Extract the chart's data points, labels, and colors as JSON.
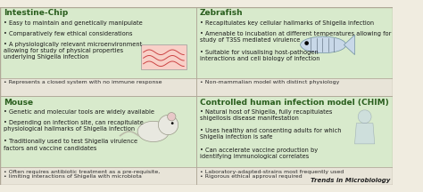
{
  "bg_color": "#f0ece0",
  "green_bg": "#d8eacc",
  "footer_bg": "#e8e4d8",
  "white_header_bg": "#f5f2ea",
  "border_color": "#b0a898",
  "header_green": "#2a5e1e",
  "bullet_color": "#1a1a1a",
  "footer_color": "#2a2a2a",
  "title_color": "#222222",
  "title": "Trends in Microbiology",
  "font_size_label": 6.5,
  "font_size_bullet": 4.8,
  "font_size_footer": 4.5,
  "font_size_title": 5.0,
  "quadrants": [
    {
      "label": "Intestine-Chip",
      "col": 0,
      "row": 0,
      "bullets": [
        "Easy to maintain and genetically manipulate",
        "Comparatively few ethical considerations",
        "A physiologically relevant microenvironment\nallowing for study of physical properties\nunderlying Shigella infection"
      ],
      "footer": "Represents a closed system with no immune response"
    },
    {
      "label": "Zebrafish",
      "col": 1,
      "row": 0,
      "bullets": [
        "Recapitulates key cellular hallmarks of Shigella infection",
        "Amenable to incubation at different temperatures allowing for\nstudy of T3SS mediated virulence",
        "Suitable for visualising host-pathogen\ninteractions and cell biology of infection"
      ],
      "footer": "Non-mammalian model with distinct physiology"
    },
    {
      "label": "Mouse",
      "col": 0,
      "row": 1,
      "bullets": [
        "Genetic and molecular tools are widely available",
        "Depending on infection site, can recapitulate\nphysiological hallmarks of Shigella infection",
        "Traditionally used to test Shigella virulence\nfactors and vaccine candidates"
      ],
      "footer": "Often requires antibiotic treatment as a pre-requisite,\nlimiting interactions of Shigella with microbiota"
    },
    {
      "label": "Controlled human infection model (CHIM)",
      "col": 1,
      "row": 1,
      "bullets": [
        "Natural host of Shigella, fully recapitulates\nshigellosis disease manifestation",
        "Uses healthy and consenting adults for which\nShigella infection is safe",
        "Can accelerate vaccine production by\nidentifying immunological correlates"
      ],
      "footer": "Laboratory-adapted-strains most frequently used\nRigorous ethical approval required"
    }
  ]
}
